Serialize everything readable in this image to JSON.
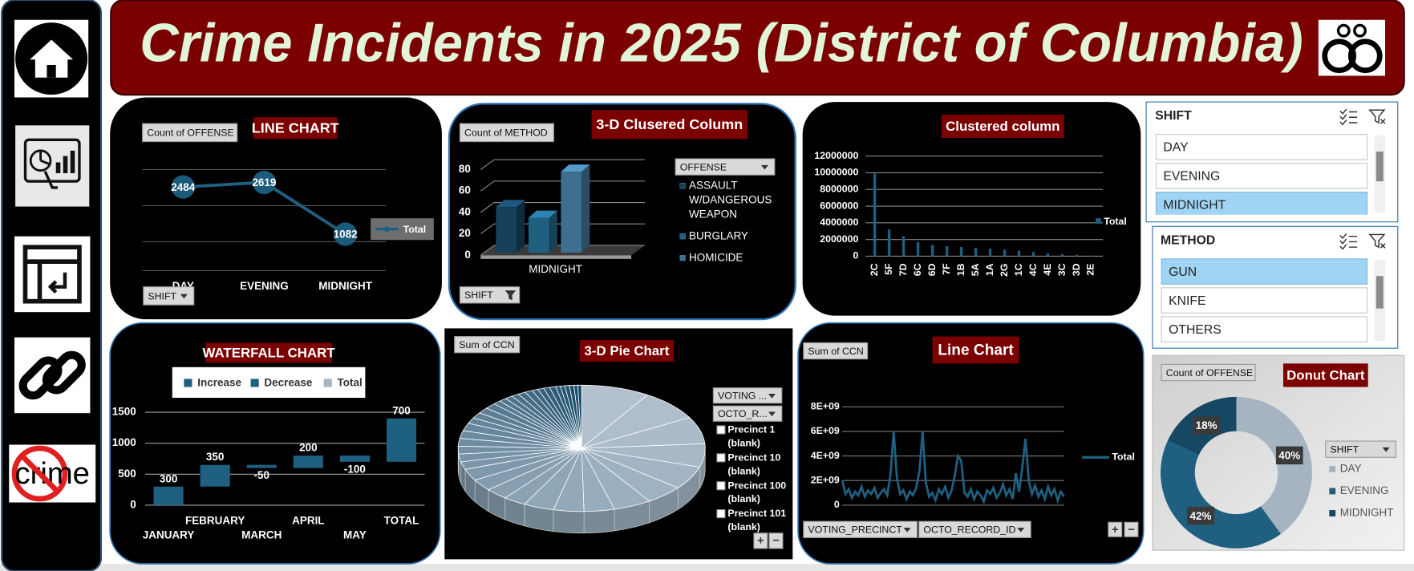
{
  "header": {
    "title": "Crime Incidents in 2025 (District of Columbia)",
    "sidebar_label": "crime"
  },
  "slicers": [
    {
      "title": "SHIFT",
      "items": [
        "DAY",
        "EVENING",
        "MIDNIGHT"
      ],
      "selected": [
        false,
        false,
        true
      ]
    },
    {
      "title": "METHOD",
      "items": [
        "GUN",
        "KNIFE",
        "OTHERS"
      ],
      "selected": [
        true,
        false,
        false
      ]
    }
  ],
  "chart_data": [
    {
      "type": "line",
      "title": "LINE CHART",
      "field_button": "Count of OFFENSE",
      "axis_button": "SHIFT",
      "categories": [
        "DAY",
        "EVENING",
        "MIDNIGHT"
      ],
      "series": [
        {
          "name": "Total",
          "color": "#1f5f80",
          "values": [
            2484,
            2619,
            1082
          ]
        }
      ],
      "ylim": [
        0,
        3000
      ],
      "markers": true,
      "data_labels": true
    },
    {
      "type": "bar3d",
      "title": "3-D Clusered Column",
      "field_button": "Count of METHOD",
      "axis_button": "SHIFT",
      "legend_title": "OFFENSE",
      "categories": [
        "MIDNIGHT"
      ],
      "series": [
        {
          "name": "ASSAULT W/DANGEROUS WEAPON",
          "color": "#163f5a",
          "values": [
            45
          ]
        },
        {
          "name": "BURGLARY",
          "color": "#1f5f80",
          "values": [
            35
          ]
        },
        {
          "name": "HOMICIDE",
          "color": "#3d6f8f",
          "values": [
            78
          ]
        }
      ],
      "ylim": [
        0,
        80
      ],
      "yticks": [
        0,
        20,
        40,
        60,
        80
      ]
    },
    {
      "type": "bar",
      "title": "Clustered column",
      "categories": [
        "2C",
        "5F",
        "7D",
        "6C",
        "6D",
        "7F",
        "1B",
        "5A",
        "1A",
        "2G",
        "1C",
        "4C",
        "4E",
        "3C",
        "3D",
        "2E"
      ],
      "series": [
        {
          "name": "Total",
          "color": "#1f5f80",
          "values": [
            9900000,
            3200000,
            2400000,
            1700000,
            1350000,
            1200000,
            1100000,
            1000000,
            900000,
            800000,
            650000,
            500000,
            350000,
            250000,
            150000,
            60000
          ]
        }
      ],
      "ylim": [
        0,
        12000000
      ],
      "yticks": [
        0,
        2000000,
        4000000,
        6000000,
        8000000,
        10000000,
        12000000
      ]
    },
    {
      "type": "waterfall",
      "title": "WATERFALL CHART",
      "categories": [
        "JANUARY",
        "FEBRUARY",
        "MARCH",
        "APRIL",
        "MAY",
        "TOTAL"
      ],
      "values": [
        300,
        350,
        -50,
        200,
        -100,
        700
      ],
      "color": "#1f5f80",
      "legend": [
        "Increase",
        "Decrease",
        "Total"
      ],
      "legend_colors": [
        "#1f5f80",
        "#1f5f80",
        "#a6b4c2"
      ],
      "ylim": [
        0,
        1500
      ],
      "yticks": [
        0,
        500,
        1000,
        1500
      ]
    },
    {
      "type": "pie3d",
      "title": "3-D  Pie Chart",
      "field_button": "Sum of CCN",
      "filter_buttons": [
        "VOTING ...",
        "OCTO_R..."
      ],
      "categories": [
        "Precinct 1 (blank)",
        "Precinct 10 (blank)",
        "Precinct 100 (blank)",
        "Precinct 101 (blank)",
        null,
        null,
        null,
        null,
        null,
        null,
        null,
        null,
        null,
        null,
        null,
        null,
        null,
        null,
        null,
        null,
        null,
        null,
        null,
        null,
        null,
        null,
        null,
        null,
        null,
        null,
        null,
        null,
        null,
        null,
        null,
        null,
        null,
        null,
        null,
        null
      ],
      "values": [
        9,
        8,
        7,
        6,
        6,
        5,
        5,
        4,
        4,
        4,
        3,
        3,
        3,
        3,
        2,
        2,
        2,
        2,
        2,
        2,
        1.5,
        1.5,
        1.5,
        1.5,
        1,
        1,
        1,
        1,
        1,
        1,
        0.8,
        0.8,
        0.8,
        0.8,
        0.6,
        0.6,
        0.6,
        0.6,
        0.5,
        0.5
      ],
      "color_range": [
        "#b3c1ce",
        "#184a68"
      ],
      "buttons": [
        "+",
        "−"
      ]
    },
    {
      "type": "line",
      "title": "Line Chart",
      "field_button": "Sum of CCN",
      "axis_buttons": [
        "VOTING_PRECINCT",
        "OCTO_RECORD_ID"
      ],
      "series": [
        {
          "name": "Total",
          "color": "#1f5f80",
          "values": [
            2000000000.0,
            900000000.0,
            1300000000.0,
            600000000.0,
            1100000000.0,
            800000000.0,
            1500000000.0,
            700000000.0,
            1200000000.0,
            900000000.0,
            1400000000.0,
            600000000.0,
            1000000000.0,
            1300000000.0,
            800000000.0,
            2500000000.0,
            6000000000.0,
            2200000000.0,
            900000000.0,
            1200000000.0,
            500000000.0,
            1100000000.0,
            800000000.0,
            1400000000.0,
            2800000000.0,
            6000000000.0,
            1800000000.0,
            700000000.0,
            1000000000.0,
            400000000.0,
            1300000000.0,
            900000000.0,
            1500000000.0,
            600000000.0,
            1200000000.0,
            2400000000.0,
            4000000000.0,
            3600000000.0,
            1000000000.0,
            700000000.0,
            1300000000.0,
            500000000.0,
            1100000000.0,
            800000000.0,
            300000000.0,
            1200000000.0,
            900000000.0,
            1400000000.0,
            600000000.0,
            1000000000.0,
            1700000000.0,
            800000000.0,
            1300000000.0,
            500000000.0,
            2600000000.0,
            1100000000.0,
            3100000000.0,
            5400000000.0,
            2000000000.0,
            900000000.0,
            1600000000.0,
            700000000.0,
            1200000000.0,
            500000000.0,
            1500000000.0,
            800000000.0,
            1300000000.0,
            400000000.0,
            1100000000.0,
            700000000.0
          ]
        }
      ],
      "ylim": [
        0,
        8000000000.0
      ],
      "yticks": [
        0,
        {
          "value": 2000000000.0,
          "label": "2E+09"
        },
        {
          "value": 4000000000.0,
          "label": "4E+09"
        },
        {
          "value": 6000000000.0,
          "label": "6E+09"
        },
        {
          "value": 8000000000.0,
          "label": "8E+09"
        }
      ],
      "markers": false,
      "data_labels": false,
      "buttons": [
        "+",
        "−"
      ]
    },
    {
      "type": "donut",
      "title": "Donut Chart",
      "field_button": "Count of OFFENSE",
      "legend_title": "SHIFT",
      "categories": [
        "DAY",
        "EVENING",
        "MIDNIGHT"
      ],
      "values": [
        40,
        42,
        18
      ],
      "value_labels": [
        "40%",
        "42%",
        "18%"
      ],
      "colors": [
        "#a6b4c2",
        "#1f5f80",
        "#164863"
      ]
    }
  ]
}
